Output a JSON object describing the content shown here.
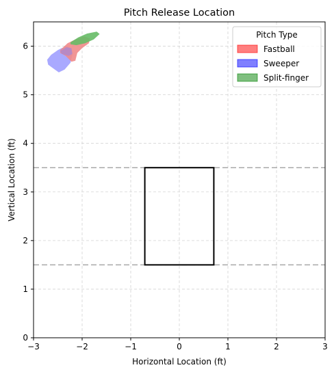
{
  "chart_data": {
    "type": "scatter",
    "title": "Pitch Release Location",
    "xlabel": "Horizontal Location (ft)",
    "ylabel": "Vertical Location (ft)",
    "xlim": [
      -3,
      3
    ],
    "ylim": [
      0,
      6.5
    ],
    "xticks": [
      -3,
      -2,
      -1,
      0,
      1,
      2,
      3
    ],
    "yticks": [
      0,
      1,
      2,
      3,
      4,
      5,
      6
    ],
    "grid": true,
    "legend": {
      "title": "Pitch Type",
      "placement": "top-right",
      "entries": [
        {
          "label": "Fastball",
          "color": "#ff0000"
        },
        {
          "label": "Sweeper",
          "color": "#0000ff"
        },
        {
          "label": "Split-finger",
          "color": "#008000"
        }
      ]
    },
    "strike_zone": {
      "x": [
        -0.71,
        0.71
      ],
      "y": [
        1.5,
        3.5
      ]
    },
    "reference_lines": [
      1.5,
      3.5
    ],
    "series": [
      {
        "name": "Sweeper",
        "color": "#a0a0ff",
        "region": [
          [
            -2.72,
            5.72
          ],
          [
            -2.64,
            5.82
          ],
          [
            -2.5,
            5.92
          ],
          [
            -2.34,
            6.0
          ],
          [
            -2.24,
            5.96
          ],
          [
            -2.2,
            5.82
          ],
          [
            -2.24,
            5.66
          ],
          [
            -2.36,
            5.52
          ],
          [
            -2.48,
            5.46
          ],
          [
            -2.62,
            5.56
          ],
          [
            -2.7,
            5.62
          ]
        ]
      },
      {
        "name": "Fastball",
        "color": "#f08a8a",
        "region": [
          [
            -2.45,
            5.92
          ],
          [
            -2.3,
            6.06
          ],
          [
            -2.14,
            6.14
          ],
          [
            -1.96,
            6.2
          ],
          [
            -1.84,
            6.16
          ],
          [
            -1.86,
            6.06
          ],
          [
            -2.0,
            5.96
          ],
          [
            -2.1,
            5.86
          ],
          [
            -2.14,
            5.7
          ],
          [
            -2.22,
            5.68
          ],
          [
            -2.34,
            5.8
          ],
          [
            -2.45,
            5.86
          ]
        ]
      },
      {
        "name": "Split-finger",
        "color": "#66bb66",
        "region": [
          [
            -2.24,
            6.08
          ],
          [
            -2.08,
            6.18
          ],
          [
            -1.9,
            6.26
          ],
          [
            -1.7,
            6.3
          ],
          [
            -1.64,
            6.25
          ],
          [
            -1.76,
            6.14
          ],
          [
            -1.94,
            6.06
          ],
          [
            -2.12,
            6.02
          ],
          [
            -2.24,
            6.04
          ]
        ]
      },
      {
        "name": "Overlap",
        "color": "#b388c8",
        "region": [
          [
            -2.45,
            5.9
          ],
          [
            -2.32,
            5.98
          ],
          [
            -2.22,
            5.96
          ],
          [
            -2.2,
            5.84
          ],
          [
            -2.28,
            5.8
          ],
          [
            -2.42,
            5.84
          ]
        ]
      }
    ]
  }
}
